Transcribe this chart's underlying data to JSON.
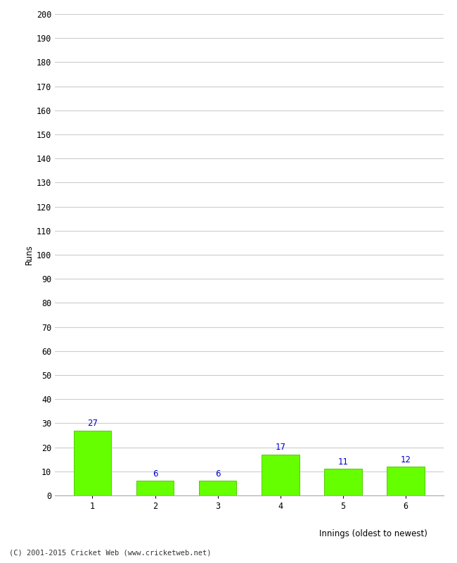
{
  "categories": [
    "1",
    "2",
    "3",
    "4",
    "5",
    "6"
  ],
  "values": [
    27,
    6,
    6,
    17,
    11,
    12
  ],
  "bar_color": "#66ff00",
  "bar_edge_color": "#55cc00",
  "label_color": "#0000cc",
  "ylabel": "Runs",
  "xlabel": "Innings (oldest to newest)",
  "ylim": [
    0,
    200
  ],
  "ytick_step": 10,
  "footer": "(C) 2001-2015 Cricket Web (www.cricketweb.net)",
  "background_color": "#ffffff",
  "grid_color": "#cccccc"
}
